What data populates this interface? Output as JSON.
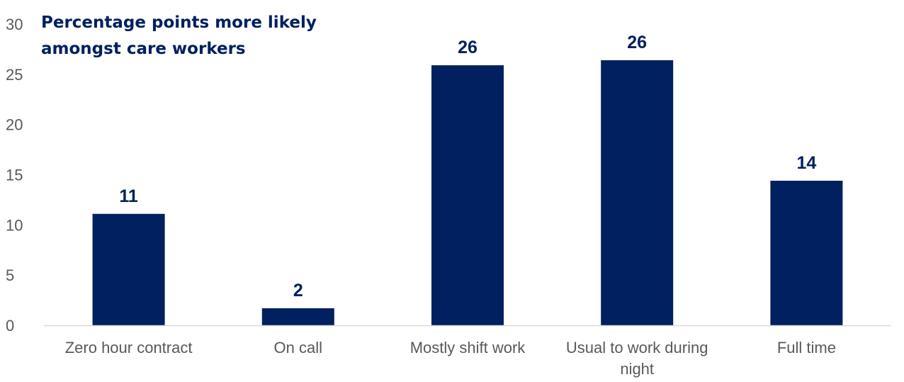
{
  "chart_data": {
    "type": "bar",
    "title": "Percentage points more likely amongst care workers",
    "categories": [
      "Zero hour contract",
      "On call",
      "Mostly shift work",
      "Usual to work during night",
      "Full time"
    ],
    "values": [
      11.1,
      1.7,
      25.9,
      26.4,
      14.4
    ],
    "data_labels": [
      "11",
      "2",
      "26",
      "26",
      "14"
    ],
    "xlabel": "",
    "ylabel": "",
    "ylim": [
      0,
      30
    ],
    "yticks": [
      "0",
      "5",
      "10",
      "15",
      "20",
      "25",
      "30"
    ],
    "grid": false,
    "legend": "none",
    "bar_color": "#002060",
    "label_color": "#002060",
    "tick_color": "#595959",
    "axis_color": "#d9d9d9"
  }
}
